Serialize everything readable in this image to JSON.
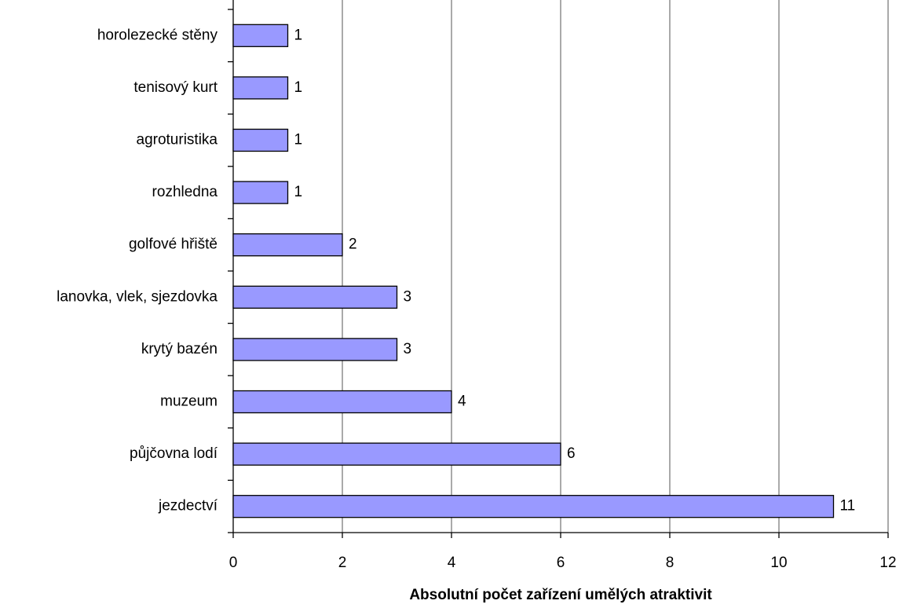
{
  "chart_data": {
    "type": "bar",
    "orientation": "horizontal",
    "x_label": "Absolutní počet zařízení umělých atraktivit",
    "categories": [
      "horolezecké stěny",
      "tenisový kurt",
      "agroturistika",
      "rozhledna",
      "golfové hřiště",
      "lanovka, vlek, sjezdovka",
      "krytý bazén",
      "muzeum",
      "půjčovna lodí",
      "jezdectví"
    ],
    "values": [
      1,
      1,
      1,
      1,
      2,
      3,
      3,
      4,
      6,
      11
    ],
    "color": "#9999ff",
    "xlim": [
      0,
      12
    ],
    "xticks": [
      0,
      2,
      4,
      6,
      8,
      10,
      12
    ],
    "grid": true
  }
}
